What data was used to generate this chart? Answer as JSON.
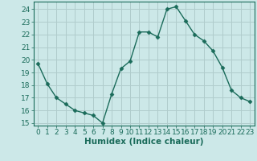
{
  "x": [
    0,
    1,
    2,
    3,
    4,
    5,
    6,
    7,
    8,
    9,
    10,
    11,
    12,
    13,
    14,
    15,
    16,
    17,
    18,
    19,
    20,
    21,
    22,
    23
  ],
  "y": [
    19.7,
    18.1,
    17.0,
    16.5,
    16.0,
    15.8,
    15.6,
    15.0,
    17.3,
    19.3,
    19.9,
    22.2,
    22.2,
    21.8,
    24.0,
    24.2,
    23.1,
    22.0,
    21.5,
    20.7,
    19.4,
    17.6,
    17.0,
    16.7
  ],
  "line_color": "#1a6b5a",
  "marker": "D",
  "marker_size": 2.5,
  "bg_color": "#cce8e8",
  "grid_color_major": "#b0cccc",
  "grid_color_minor": "#b0cccc",
  "xlabel": "Humidex (Indice chaleur)",
  "ylabel": "",
  "xlim": [
    -0.5,
    23.5
  ],
  "ylim": [
    14.8,
    24.6
  ],
  "yticks": [
    15,
    16,
    17,
    18,
    19,
    20,
    21,
    22,
    23,
    24
  ],
  "xticks": [
    0,
    1,
    2,
    3,
    4,
    5,
    6,
    7,
    8,
    9,
    10,
    11,
    12,
    13,
    14,
    15,
    16,
    17,
    18,
    19,
    20,
    21,
    22,
    23
  ],
  "tick_color": "#1a6b5a",
  "label_color": "#1a6b5a",
  "xlabel_fontsize": 7.5,
  "tick_fontsize": 6.5,
  "linewidth": 1.0
}
